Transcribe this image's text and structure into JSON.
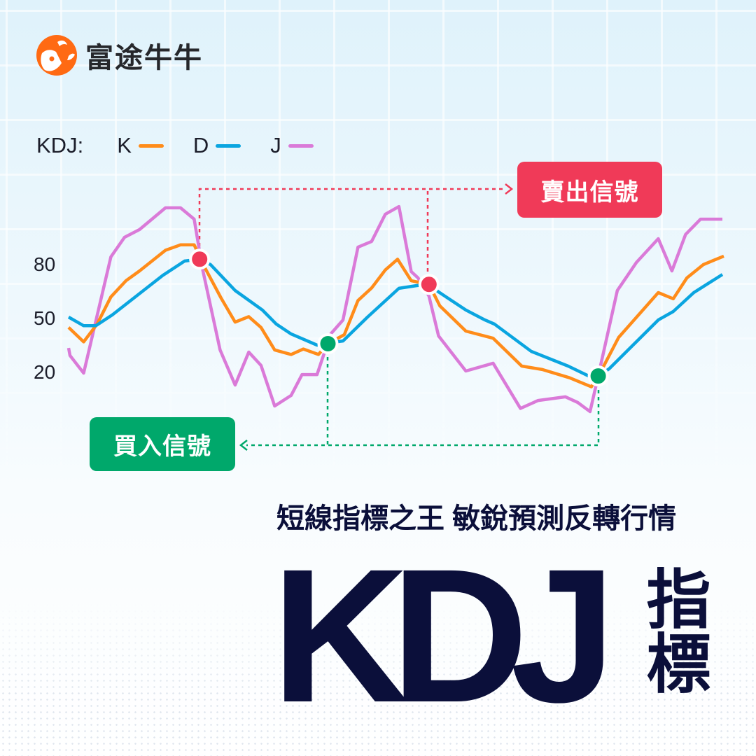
{
  "brand": {
    "name": "富途牛牛",
    "logo_color": "#ff6a13"
  },
  "legend": {
    "label": "KDJ:",
    "items": [
      {
        "name": "K",
        "color": "#ff8c1a"
      },
      {
        "name": "D",
        "color": "#0aa5e0"
      },
      {
        "name": "J",
        "color": "#da7ad8"
      }
    ]
  },
  "signals": {
    "sell_label": "賣出信號",
    "buy_label": "買入信號",
    "sell_color": "#f03a58",
    "buy_color": "#00a86b"
  },
  "headline": {
    "subtitle": "短線指標之王 敏銳預測反轉行情",
    "title": "KDJ",
    "title_suffix": "指標"
  },
  "chart_data": {
    "type": "line",
    "title": "",
    "xlabel": "",
    "ylabel": "",
    "yticks": [
      "80",
      "50",
      "20"
    ],
    "ytick_values": [
      80,
      50,
      20
    ],
    "grid": false,
    "legend_position": "top-left",
    "series": [
      {
        "name": "K",
        "color": "#ff8c1a",
        "points": [
          [
            0,
            45
          ],
          [
            1.1,
            37
          ],
          [
            2.1,
            47
          ],
          [
            3.1,
            62
          ],
          [
            4.2,
            71
          ],
          [
            5.2,
            76.5
          ],
          [
            7.1,
            88
          ],
          [
            8.2,
            91
          ],
          [
            9.2,
            91
          ],
          [
            10,
            78
          ],
          [
            11.2,
            61
          ],
          [
            12.2,
            48
          ],
          [
            13.2,
            51
          ],
          [
            14.1,
            45
          ],
          [
            15.1,
            32.5
          ],
          [
            16.3,
            30
          ],
          [
            17.2,
            33
          ],
          [
            18.3,
            30
          ],
          [
            19,
            36
          ],
          [
            20.2,
            41
          ],
          [
            21.2,
            60
          ],
          [
            22.2,
            67
          ],
          [
            23.2,
            77
          ],
          [
            24.1,
            83
          ],
          [
            25.1,
            71
          ],
          [
            26.4,
            69
          ],
          [
            27.2,
            57
          ],
          [
            29.1,
            43
          ],
          [
            31.1,
            39
          ],
          [
            33.2,
            23.5
          ],
          [
            34.7,
            21.6
          ],
          [
            36.7,
            17
          ],
          [
            38.3,
            12
          ],
          [
            38.8,
            18
          ],
          [
            39.2,
            23.5
          ],
          [
            40.3,
            39.5
          ],
          [
            43.2,
            64.4
          ],
          [
            44.3,
            61
          ],
          [
            45.3,
            72.6
          ],
          [
            46.5,
            80
          ],
          [
            48,
            84.7
          ]
        ]
      },
      {
        "name": "D",
        "color": "#0aa5e0",
        "points": [
          [
            0,
            50.8
          ],
          [
            1.1,
            46
          ],
          [
            2,
            46
          ],
          [
            3.2,
            52
          ],
          [
            6.9,
            74
          ],
          [
            8.5,
            82
          ],
          [
            9.6,
            83
          ],
          [
            10.4,
            80
          ],
          [
            12.2,
            65.6
          ],
          [
            14.2,
            54.7
          ],
          [
            15.2,
            47
          ],
          [
            16.3,
            41.4
          ],
          [
            18.2,
            35.2
          ],
          [
            19,
            36.4
          ],
          [
            20.1,
            37.5
          ],
          [
            21.9,
            50.8
          ],
          [
            24.2,
            66.8
          ],
          [
            25.5,
            68.3
          ],
          [
            26.4,
            69
          ],
          [
            27.1,
            64.8
          ],
          [
            29.1,
            54.7
          ],
          [
            30.5,
            49.2
          ],
          [
            31.2,
            46.9
          ],
          [
            33.9,
            31.7
          ],
          [
            36.6,
            23.5
          ],
          [
            38.1,
            18
          ],
          [
            38.8,
            18
          ],
          [
            39.6,
            22
          ],
          [
            43.2,
            49.2
          ],
          [
            44.3,
            53.9
          ],
          [
            45.8,
            64.4
          ],
          [
            47.9,
            74.5
          ]
        ]
      },
      {
        "name": "J",
        "color": "#da7ad8",
        "points": [
          [
            0,
            33.6
          ],
          [
            0.1,
            29.4
          ],
          [
            1.1,
            19.6
          ],
          [
            3.1,
            84.3
          ],
          [
            4.1,
            95.2
          ],
          [
            5.2,
            99.5
          ],
          [
            7.1,
            111.6
          ],
          [
            8.2,
            111.6
          ],
          [
            9.2,
            105.3
          ],
          [
            9.8,
            78
          ],
          [
            11.1,
            32.5
          ],
          [
            12.2,
            13
          ],
          [
            13.2,
            31.3
          ],
          [
            14.1,
            23.9
          ],
          [
            15.1,
            1.3
          ],
          [
            16.3,
            7.2
          ],
          [
            17.1,
            18.8
          ],
          [
            18.2,
            18.8
          ],
          [
            19.2,
            41.4
          ],
          [
            20.1,
            49.2
          ],
          [
            21.2,
            89.7
          ],
          [
            22.2,
            92.9
          ],
          [
            23.2,
            108
          ],
          [
            24.2,
            112.3
          ],
          [
            25.1,
            76.1
          ],
          [
            25.6,
            72.6
          ],
          [
            26.4,
            62.5
          ],
          [
            27.1,
            40.3
          ],
          [
            29.1,
            20.8
          ],
          [
            31.1,
            25.1
          ],
          [
            33.1,
            0
          ],
          [
            34.4,
            4.4
          ],
          [
            36.4,
            6.4
          ],
          [
            37.3,
            3.3
          ],
          [
            38.2,
            -1.8
          ],
          [
            38.8,
            18
          ],
          [
            40.2,
            65.6
          ],
          [
            41.6,
            81.2
          ],
          [
            43.2,
            94.4
          ],
          [
            44.2,
            76.5
          ],
          [
            45.2,
            96.8
          ],
          [
            46.3,
            105.3
          ],
          [
            47.9,
            105.3
          ]
        ]
      }
    ],
    "markers": [
      {
        "type": "sell",
        "x": 9.6,
        "y": 83
      },
      {
        "type": "buy",
        "x": 19,
        "y": 36
      },
      {
        "type": "sell",
        "x": 26.4,
        "y": 69
      },
      {
        "type": "buy",
        "x": 38.8,
        "y": 18
      }
    ]
  }
}
